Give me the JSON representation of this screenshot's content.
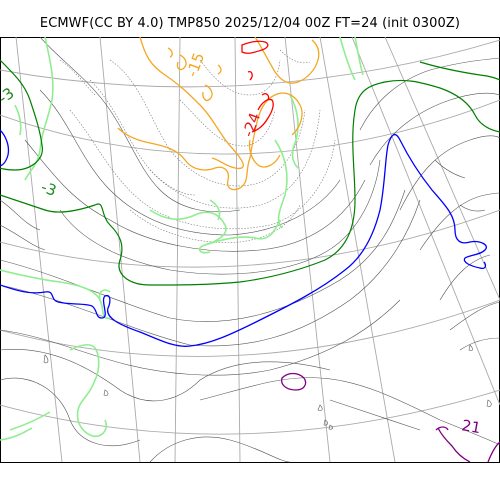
{
  "title": "ECMWF(CC BY 4.0) TMP850 2025/12/04 00Z FT=24 (init 0300Z)",
  "contour_labels": [
    {
      "text": "-15",
      "color": "#f5a623"
    },
    {
      "text": "-24",
      "color": "#e31a1c"
    },
    {
      "text": "-3",
      "color": "#1a8c1a"
    },
    {
      "text": "-3",
      "color": "#1a8c1a"
    },
    {
      "text": "21",
      "color": "#800080"
    }
  ],
  "colors": {
    "grid": "#aaaaaa",
    "thin_isotherm": "#555555",
    "dotted_isotherm": "#777777",
    "light_green": "#90ee90",
    "green": "#008000",
    "blue": "#0000ff",
    "orange": "#ffa500",
    "red": "#ff0000",
    "purple": "#800080"
  }
}
